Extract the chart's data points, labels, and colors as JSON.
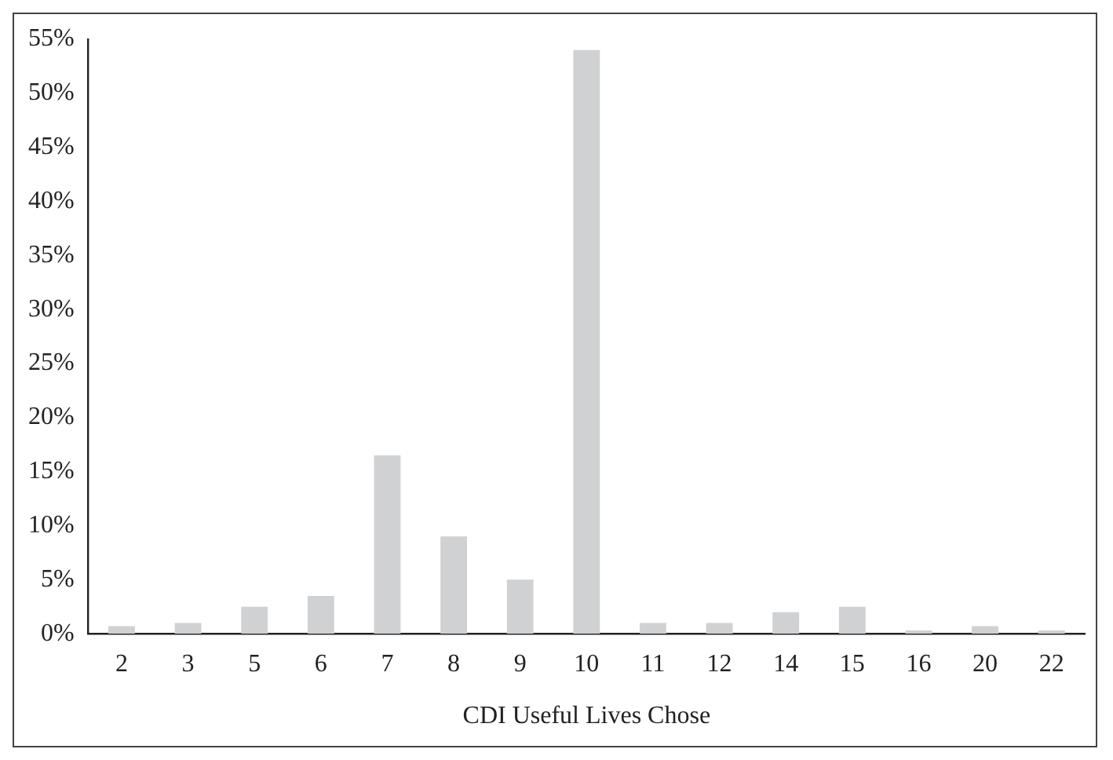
{
  "chart_data": {
    "type": "bar",
    "xlabel": "CDI Useful Lives Chose",
    "categories": [
      "2",
      "3",
      "5",
      "6",
      "7",
      "8",
      "9",
      "10",
      "11",
      "12",
      "14",
      "15",
      "16",
      "20",
      "22"
    ],
    "values": [
      0.7,
      1,
      2.5,
      3.5,
      16.5,
      9,
      5,
      54,
      1,
      1,
      2,
      2.5,
      0.3,
      0.7,
      0.3
    ],
    "color": "#d0d1d3",
    "ylim": [
      0,
      55
    ],
    "yticks": [
      {
        "value": 0,
        "label": "0%"
      },
      {
        "value": 5,
        "label": "5%"
      },
      {
        "value": 10,
        "label": "10%"
      },
      {
        "value": 15,
        "label": "15%"
      },
      {
        "value": 20,
        "label": "20%"
      },
      {
        "value": 25,
        "label": "25%"
      },
      {
        "value": 30,
        "label": "30%"
      },
      {
        "value": 35,
        "label": "35%"
      },
      {
        "value": 40,
        "label": "40%"
      },
      {
        "value": 45,
        "label": "45%"
      },
      {
        "value": 50,
        "label": "50%"
      },
      {
        "value": 55,
        "label": "55%"
      }
    ],
    "grid": false,
    "legend": false
  }
}
